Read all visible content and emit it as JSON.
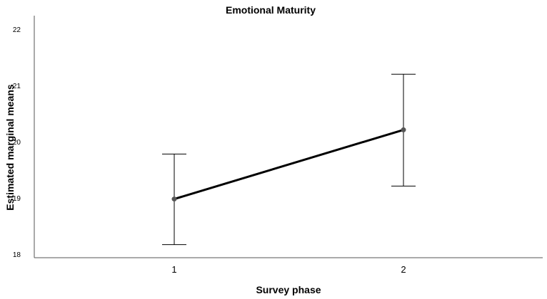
{
  "chart_data": {
    "type": "line",
    "title": "Emotional Maturity",
    "xlabel": "Survey phase",
    "ylabel": "Estimated marginal means",
    "categories": [
      "1",
      "2"
    ],
    "ylim": [
      18,
      22.2
    ],
    "yticks": [
      "18",
      "19",
      "20",
      "21",
      "22"
    ],
    "series": [
      {
        "name": "Emotional Maturity",
        "values": [
          18.98,
          20.21
        ],
        "error_lower": [
          18.17,
          19.21
        ],
        "error_upper": [
          19.78,
          21.2
        ]
      }
    ],
    "grid": false,
    "legend": "none"
  }
}
